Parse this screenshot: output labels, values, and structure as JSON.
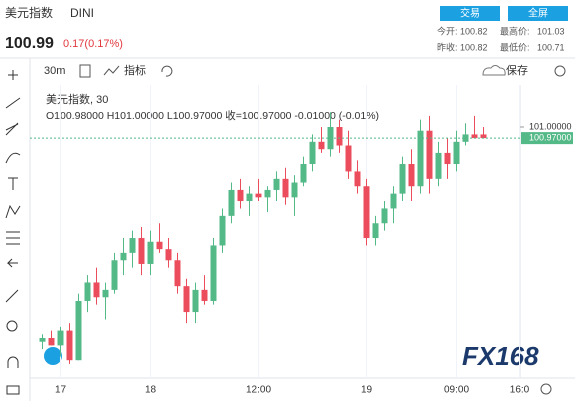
{
  "header": {
    "title": "美元指数",
    "symbol": "DINI",
    "price": "100.99",
    "change": "0.17(0.17%)",
    "buttons": [
      "交易",
      "全屏"
    ],
    "stats": [
      [
        "今开:",
        "100.82"
      ],
      [
        "最高价:",
        "101.03"
      ],
      [
        "昨收:",
        "100.82"
      ],
      [
        "最低价:",
        "100.71"
      ]
    ]
  },
  "toolbar": {
    "interval": "30m",
    "indicators": "指标",
    "save": "保存"
  },
  "chart_data": {
    "type": "candlestick",
    "legend_title": "美元指数, 30",
    "legend_ohlc": "O100.98000  H101.00000  L100.97000  收=100.97000  -0.01000 (-0.01%)",
    "up_color": "#53b987",
    "down_color": "#eb4d5c",
    "ylim": [
      100.33,
      101.1
    ],
    "yticks": [
      {
        "value": 101,
        "label": "101.00000"
      }
    ],
    "last_price": {
      "value": 100.97,
      "label": "100.97000"
    },
    "categories": [
      null,
      null,
      "17",
      null,
      null,
      null,
      null,
      null,
      null,
      null,
      null,
      null,
      "18",
      null,
      null,
      null,
      null,
      null,
      null,
      null,
      null,
      null,
      null,
      null,
      "12:00",
      null,
      null,
      null,
      null,
      null,
      null,
      null,
      null,
      null,
      null,
      null,
      "19",
      null,
      null,
      null,
      null,
      null,
      null,
      null,
      null,
      null,
      "09:00",
      null,
      null,
      null,
      null,
      null,
      null,
      "16:0"
    ],
    "ohlc": [
      [
        100.42,
        100.44,
        100.4,
        100.43
      ],
      [
        100.43,
        100.45,
        100.41,
        100.41
      ],
      [
        100.41,
        100.46,
        100.38,
        100.45
      ],
      [
        100.45,
        100.47,
        100.36,
        100.37
      ],
      [
        100.37,
        100.55,
        100.37,
        100.53
      ],
      [
        100.53,
        100.6,
        100.5,
        100.58
      ],
      [
        100.58,
        100.62,
        100.52,
        100.54
      ],
      [
        100.54,
        100.58,
        100.48,
        100.56
      ],
      [
        100.56,
        100.66,
        100.55,
        100.64
      ],
      [
        100.64,
        100.7,
        100.6,
        100.66
      ],
      [
        100.66,
        100.72,
        100.62,
        100.7
      ],
      [
        100.7,
        100.73,
        100.6,
        100.63
      ],
      [
        100.63,
        100.72,
        100.6,
        100.69
      ],
      [
        100.69,
        100.74,
        100.66,
        100.67
      ],
      [
        100.67,
        100.7,
        100.62,
        100.64
      ],
      [
        100.64,
        100.66,
        100.55,
        100.57
      ],
      [
        100.57,
        100.59,
        100.47,
        100.5
      ],
      [
        100.5,
        100.58,
        100.47,
        100.56
      ],
      [
        100.56,
        100.6,
        100.52,
        100.53
      ],
      [
        100.53,
        100.7,
        100.52,
        100.68
      ],
      [
        100.68,
        100.78,
        100.66,
        100.76
      ],
      [
        100.76,
        100.85,
        100.74,
        100.83
      ],
      [
        100.83,
        100.86,
        100.78,
        100.8
      ],
      [
        100.8,
        100.84,
        100.76,
        100.82
      ],
      [
        100.82,
        100.86,
        100.8,
        100.81
      ],
      [
        100.81,
        100.84,
        100.77,
        100.83
      ],
      [
        100.83,
        100.88,
        100.8,
        100.86
      ],
      [
        100.86,
        100.89,
        100.79,
        100.81
      ],
      [
        100.81,
        100.87,
        100.76,
        100.85
      ],
      [
        100.85,
        100.92,
        100.84,
        100.9
      ],
      [
        100.9,
        100.98,
        100.88,
        100.96
      ],
      [
        100.96,
        101.0,
        100.93,
        100.94
      ],
      [
        100.94,
        101.04,
        100.92,
        101.0
      ],
      [
        101.0,
        101.02,
        100.93,
        100.95
      ],
      [
        100.95,
        100.99,
        100.86,
        100.88
      ],
      [
        100.88,
        100.91,
        100.82,
        100.84
      ],
      [
        100.84,
        100.86,
        100.68,
        100.7
      ],
      [
        100.7,
        100.76,
        100.68,
        100.74
      ],
      [
        100.74,
        100.8,
        100.72,
        100.78
      ],
      [
        100.78,
        100.84,
        100.74,
        100.82
      ],
      [
        100.82,
        100.92,
        100.8,
        100.9
      ],
      [
        100.9,
        100.94,
        100.8,
        100.84
      ],
      [
        100.84,
        101.02,
        100.82,
        100.99
      ],
      [
        100.99,
        101.03,
        100.82,
        100.86
      ],
      [
        100.86,
        100.96,
        100.84,
        100.93
      ],
      [
        100.93,
        100.97,
        100.86,
        100.9
      ],
      [
        100.9,
        100.99,
        100.88,
        100.96
      ],
      [
        100.96,
        101.01,
        100.95,
        100.98
      ],
      [
        100.98,
        101.03,
        100.97,
        100.97
      ],
      [
        100.98,
        101.0,
        100.97,
        100.97
      ],
      null,
      null,
      null,
      null
    ],
    "watermark": "FX168"
  }
}
